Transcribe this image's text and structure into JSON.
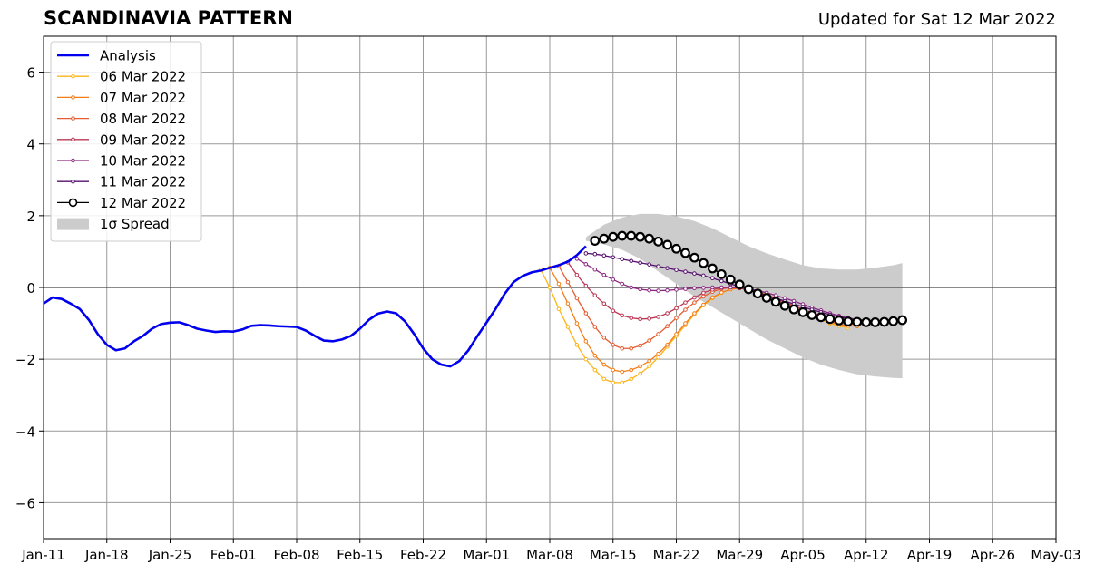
{
  "chart_data": {
    "type": "line",
    "title": "SCANDINAVIA PATTERN",
    "subtitle": "Updated for Sat 12 Mar 2022",
    "ylim": [
      -7,
      7
    ],
    "y_ticks": [
      -6,
      -4,
      -2,
      0,
      2,
      4,
      6
    ],
    "y_tick_labels": [
      "−6",
      "−4",
      "−2",
      "0",
      "2",
      "4",
      "6"
    ],
    "x_tick_labels": [
      "Jan-11",
      "Jan-18",
      "Jan-25",
      "Feb-01",
      "Feb-08",
      "Feb-15",
      "Feb-22",
      "Mar-01",
      "Mar-08",
      "Mar-15",
      "Mar-22",
      "Mar-29",
      "Apr-05",
      "Apr-12",
      "Apr-19",
      "Apr-26",
      "May-03"
    ],
    "x_tick_dates": [
      "2022-01-11",
      "2022-01-18",
      "2022-01-25",
      "2022-02-01",
      "2022-02-08",
      "2022-02-15",
      "2022-02-22",
      "2022-03-01",
      "2022-03-08",
      "2022-03-15",
      "2022-03-22",
      "2022-03-29",
      "2022-04-05",
      "2022-04-12",
      "2022-04-19",
      "2022-04-26",
      "2022-05-03"
    ],
    "grid": true,
    "legend_position": "top-left",
    "analysis": {
      "name": "Analysis",
      "color": "#0000ee",
      "x": [
        "2022-01-11",
        "2022-01-12",
        "2022-01-13",
        "2022-01-14",
        "2022-01-15",
        "2022-01-16",
        "2022-01-17",
        "2022-01-18",
        "2022-01-19",
        "2022-01-20",
        "2022-01-21",
        "2022-01-22",
        "2022-01-23",
        "2022-01-24",
        "2022-01-25",
        "2022-01-26",
        "2022-01-27",
        "2022-01-28",
        "2022-01-29",
        "2022-01-30",
        "2022-01-31",
        "2022-02-01",
        "2022-02-02",
        "2022-02-03",
        "2022-02-04",
        "2022-02-05",
        "2022-02-06",
        "2022-02-07",
        "2022-02-08",
        "2022-02-09",
        "2022-02-10",
        "2022-02-11",
        "2022-02-12",
        "2022-02-13",
        "2022-02-14",
        "2022-02-15",
        "2022-02-16",
        "2022-02-17",
        "2022-02-18",
        "2022-02-19",
        "2022-02-20",
        "2022-02-21",
        "2022-02-22",
        "2022-02-23",
        "2022-02-24",
        "2022-02-25",
        "2022-02-26",
        "2022-02-27",
        "2022-02-28",
        "2022-03-01",
        "2022-03-02",
        "2022-03-03",
        "2022-03-04",
        "2022-03-05",
        "2022-03-06",
        "2022-03-07",
        "2022-03-08",
        "2022-03-09",
        "2022-03-10",
        "2022-03-11",
        "2022-03-12"
      ],
      "y": [
        -0.45,
        -0.28,
        -0.32,
        -0.45,
        -0.6,
        -0.9,
        -1.3,
        -1.6,
        -1.75,
        -1.7,
        -1.5,
        -1.35,
        -1.15,
        -1.02,
        -0.98,
        -0.97,
        -1.05,
        -1.15,
        -1.2,
        -1.24,
        -1.22,
        -1.23,
        -1.17,
        -1.07,
        -1.05,
        -1.06,
        -1.08,
        -1.09,
        -1.1,
        -1.2,
        -1.35,
        -1.48,
        -1.5,
        -1.45,
        -1.35,
        -1.15,
        -0.9,
        -0.73,
        -0.67,
        -0.72,
        -0.95,
        -1.3,
        -1.7,
        -2.0,
        -2.15,
        -2.2,
        -2.05,
        -1.75,
        -1.35,
        -0.98,
        -0.6,
        -0.18,
        0.15,
        0.32,
        0.42,
        0.47,
        0.55,
        0.62,
        0.72,
        0.9,
        1.15
      ]
    },
    "spread": {
      "name": "1σ Spread",
      "color": "#cccccc",
      "x": [
        "2022-03-12",
        "2022-03-14",
        "2022-03-16",
        "2022-03-18",
        "2022-03-20",
        "2022-03-22",
        "2022-03-24",
        "2022-03-26",
        "2022-03-28",
        "2022-03-30",
        "2022-04-01",
        "2022-04-03",
        "2022-04-05",
        "2022-04-07",
        "2022-04-09",
        "2022-04-11",
        "2022-04-13",
        "2022-04-15",
        "2022-04-16"
      ],
      "upper": [
        1.4,
        1.75,
        1.95,
        2.05,
        2.05,
        1.98,
        1.85,
        1.65,
        1.4,
        1.15,
        0.95,
        0.78,
        0.62,
        0.53,
        0.5,
        0.5,
        0.55,
        0.62,
        0.68
      ],
      "lower": [
        1.3,
        1.2,
        1.05,
        0.8,
        0.45,
        0.1,
        -0.25,
        -0.55,
        -0.85,
        -1.15,
        -1.45,
        -1.7,
        -1.95,
        -2.15,
        -2.3,
        -2.42,
        -2.48,
        -2.52,
        -2.53
      ]
    },
    "series": [
      {
        "name": "06 Mar 2022",
        "color": "#fcb519",
        "x": [
          "2022-03-07",
          "2022-03-08",
          "2022-03-09",
          "2022-03-10",
          "2022-03-11",
          "2022-03-12",
          "2022-03-13",
          "2022-03-14",
          "2022-03-15",
          "2022-03-16",
          "2022-03-17",
          "2022-03-18",
          "2022-03-19",
          "2022-03-20",
          "2022-03-21",
          "2022-03-22",
          "2022-03-23",
          "2022-03-24",
          "2022-03-25",
          "2022-03-26",
          "2022-03-27",
          "2022-03-28",
          "2022-03-29",
          "2022-03-30",
          "2022-03-31",
          "2022-04-01",
          "2022-04-02",
          "2022-04-03",
          "2022-04-04",
          "2022-04-05",
          "2022-04-06",
          "2022-04-07",
          "2022-04-08",
          "2022-04-09",
          "2022-04-10"
        ],
        "y": [
          0.5,
          0.0,
          -0.6,
          -1.1,
          -1.6,
          -2.0,
          -2.3,
          -2.55,
          -2.65,
          -2.65,
          -2.55,
          -2.4,
          -2.2,
          -1.95,
          -1.65,
          -1.35,
          -1.05,
          -0.75,
          -0.5,
          -0.3,
          -0.15,
          -0.05,
          -0.02,
          -0.05,
          -0.12,
          -0.2,
          -0.3,
          -0.42,
          -0.55,
          -0.68,
          -0.8,
          -0.9,
          -1.0,
          -1.07,
          -1.12
        ]
      },
      {
        "name": "07 Mar 2022",
        "color": "#f57d15",
        "x": [
          "2022-03-08",
          "2022-03-09",
          "2022-03-10",
          "2022-03-11",
          "2022-03-12",
          "2022-03-13",
          "2022-03-14",
          "2022-03-15",
          "2022-03-16",
          "2022-03-17",
          "2022-03-18",
          "2022-03-19",
          "2022-03-20",
          "2022-03-21",
          "2022-03-22",
          "2022-03-23",
          "2022-03-24",
          "2022-03-25",
          "2022-03-26",
          "2022-03-27",
          "2022-03-28",
          "2022-03-29",
          "2022-03-30",
          "2022-03-31",
          "2022-04-01",
          "2022-04-02",
          "2022-04-03",
          "2022-04-04",
          "2022-04-05",
          "2022-04-06",
          "2022-04-07",
          "2022-04-08",
          "2022-04-09",
          "2022-04-10",
          "2022-04-11"
        ],
        "y": [
          0.55,
          0.1,
          -0.45,
          -1.0,
          -1.5,
          -1.9,
          -2.15,
          -2.3,
          -2.35,
          -2.3,
          -2.2,
          -2.05,
          -1.85,
          -1.6,
          -1.3,
          -1.0,
          -0.72,
          -0.48,
          -0.28,
          -0.14,
          -0.05,
          -0.02,
          -0.05,
          -0.12,
          -0.2,
          -0.3,
          -0.42,
          -0.55,
          -0.67,
          -0.78,
          -0.88,
          -0.97,
          -1.03,
          -1.07,
          -1.08
        ]
      },
      {
        "name": "08 Mar 2022",
        "color": "#e55c30",
        "x": [
          "2022-03-09",
          "2022-03-10",
          "2022-03-11",
          "2022-03-12",
          "2022-03-13",
          "2022-03-14",
          "2022-03-15",
          "2022-03-16",
          "2022-03-17",
          "2022-03-18",
          "2022-03-19",
          "2022-03-20",
          "2022-03-21",
          "2022-03-22",
          "2022-03-23",
          "2022-03-24",
          "2022-03-25",
          "2022-03-26",
          "2022-03-27",
          "2022-03-28",
          "2022-03-29",
          "2022-03-30",
          "2022-03-31",
          "2022-04-01",
          "2022-04-02",
          "2022-04-03",
          "2022-04-04",
          "2022-04-05",
          "2022-04-06",
          "2022-04-07",
          "2022-04-08",
          "2022-04-09",
          "2022-04-10",
          "2022-04-11",
          "2022-04-12"
        ],
        "y": [
          0.6,
          0.15,
          -0.3,
          -0.72,
          -1.1,
          -1.4,
          -1.6,
          -1.7,
          -1.7,
          -1.62,
          -1.48,
          -1.3,
          -1.08,
          -0.85,
          -0.62,
          -0.42,
          -0.25,
          -0.12,
          -0.04,
          0.0,
          -0.02,
          -0.08,
          -0.15,
          -0.25,
          -0.35,
          -0.47,
          -0.58,
          -0.69,
          -0.79,
          -0.87,
          -0.94,
          -0.99,
          -1.02,
          -1.03,
          -1.02
        ]
      },
      {
        "name": "09 Mar 2022",
        "color": "#bc3754",
        "x": [
          "2022-03-10",
          "2022-03-11",
          "2022-03-12",
          "2022-03-13",
          "2022-03-14",
          "2022-03-15",
          "2022-03-16",
          "2022-03-17",
          "2022-03-18",
          "2022-03-19",
          "2022-03-20",
          "2022-03-21",
          "2022-03-22",
          "2022-03-23",
          "2022-03-24",
          "2022-03-25",
          "2022-03-26",
          "2022-03-27",
          "2022-03-28",
          "2022-03-29",
          "2022-03-30",
          "2022-03-31",
          "2022-04-01",
          "2022-04-02",
          "2022-04-03",
          "2022-04-04",
          "2022-04-05",
          "2022-04-06",
          "2022-04-07",
          "2022-04-08",
          "2022-04-09",
          "2022-04-10",
          "2022-04-11",
          "2022-04-12",
          "2022-04-13"
        ],
        "y": [
          0.7,
          0.35,
          0.05,
          -0.22,
          -0.45,
          -0.65,
          -0.78,
          -0.85,
          -0.88,
          -0.87,
          -0.82,
          -0.72,
          -0.58,
          -0.42,
          -0.28,
          -0.15,
          -0.06,
          -0.01,
          0.0,
          -0.02,
          -0.07,
          -0.14,
          -0.22,
          -0.31,
          -0.41,
          -0.51,
          -0.61,
          -0.7,
          -0.78,
          -0.85,
          -0.9,
          -0.93,
          -0.95,
          -0.95,
          -0.94
        ]
      },
      {
        "name": "10 Mar 2022",
        "color": "#8c2981",
        "x": [
          "2022-03-11",
          "2022-03-12",
          "2022-03-13",
          "2022-03-14",
          "2022-03-15",
          "2022-03-16",
          "2022-03-17",
          "2022-03-18",
          "2022-03-19",
          "2022-03-20",
          "2022-03-21",
          "2022-03-22",
          "2022-03-23",
          "2022-03-24",
          "2022-03-25",
          "2022-03-26",
          "2022-03-27",
          "2022-03-28",
          "2022-03-29",
          "2022-03-30",
          "2022-03-31",
          "2022-04-01",
          "2022-04-02",
          "2022-04-03",
          "2022-04-04",
          "2022-04-05",
          "2022-04-06",
          "2022-04-07",
          "2022-04-08",
          "2022-04-09",
          "2022-04-10",
          "2022-04-11",
          "2022-04-12",
          "2022-04-13",
          "2022-04-14"
        ],
        "y": [
          0.8,
          0.65,
          0.5,
          0.35,
          0.22,
          0.1,
          0.0,
          -0.05,
          -0.08,
          -0.09,
          -0.08,
          -0.06,
          -0.04,
          -0.02,
          -0.01,
          0.0,
          0.0,
          0.0,
          -0.01,
          -0.04,
          -0.09,
          -0.15,
          -0.22,
          -0.3,
          -0.38,
          -0.47,
          -0.56,
          -0.64,
          -0.72,
          -0.79,
          -0.85,
          -0.89,
          -0.92,
          -0.93,
          -0.93
        ]
      },
      {
        "name": "11 Mar 2022",
        "color": "#56106e",
        "x": [
          "2022-03-12",
          "2022-03-13",
          "2022-03-14",
          "2022-03-15",
          "2022-03-16",
          "2022-03-17",
          "2022-03-18",
          "2022-03-19",
          "2022-03-20",
          "2022-03-21",
          "2022-03-22",
          "2022-03-23",
          "2022-03-24",
          "2022-03-25",
          "2022-03-26",
          "2022-03-27",
          "2022-03-28",
          "2022-03-29",
          "2022-03-30",
          "2022-03-31",
          "2022-04-01",
          "2022-04-02",
          "2022-04-03",
          "2022-04-04",
          "2022-04-05",
          "2022-04-06",
          "2022-04-07",
          "2022-04-08",
          "2022-04-09",
          "2022-04-10",
          "2022-04-11",
          "2022-04-12",
          "2022-04-13",
          "2022-04-14",
          "2022-04-15"
        ],
        "y": [
          0.95,
          0.93,
          0.89,
          0.84,
          0.79,
          0.74,
          0.69,
          0.64,
          0.59,
          0.54,
          0.49,
          0.44,
          0.39,
          0.33,
          0.26,
          0.18,
          0.1,
          0.02,
          -0.06,
          -0.14,
          -0.22,
          -0.3,
          -0.38,
          -0.46,
          -0.54,
          -0.62,
          -0.69,
          -0.76,
          -0.82,
          -0.87,
          -0.91,
          -0.94,
          -0.95,
          -0.95,
          -0.94
        ]
      },
      {
        "name": "12 Mar 2022",
        "color": "#000000",
        "x": [
          "2022-03-13",
          "2022-03-14",
          "2022-03-15",
          "2022-03-16",
          "2022-03-17",
          "2022-03-18",
          "2022-03-19",
          "2022-03-20",
          "2022-03-21",
          "2022-03-22",
          "2022-03-23",
          "2022-03-24",
          "2022-03-25",
          "2022-03-26",
          "2022-03-27",
          "2022-03-28",
          "2022-03-29",
          "2022-03-30",
          "2022-03-31",
          "2022-04-01",
          "2022-04-02",
          "2022-04-03",
          "2022-04-04",
          "2022-04-05",
          "2022-04-06",
          "2022-04-07",
          "2022-04-08",
          "2022-04-09",
          "2022-04-10",
          "2022-04-11",
          "2022-04-12",
          "2022-04-13",
          "2022-04-14",
          "2022-04-15",
          "2022-04-16"
        ],
        "y": [
          1.3,
          1.36,
          1.41,
          1.44,
          1.44,
          1.41,
          1.36,
          1.28,
          1.19,
          1.08,
          0.96,
          0.83,
          0.68,
          0.53,
          0.37,
          0.22,
          0.08,
          -0.05,
          -0.17,
          -0.29,
          -0.4,
          -0.51,
          -0.61,
          -0.69,
          -0.77,
          -0.83,
          -0.88,
          -0.92,
          -0.95,
          -0.96,
          -0.97,
          -0.97,
          -0.96,
          -0.94,
          -0.91
        ]
      }
    ]
  }
}
